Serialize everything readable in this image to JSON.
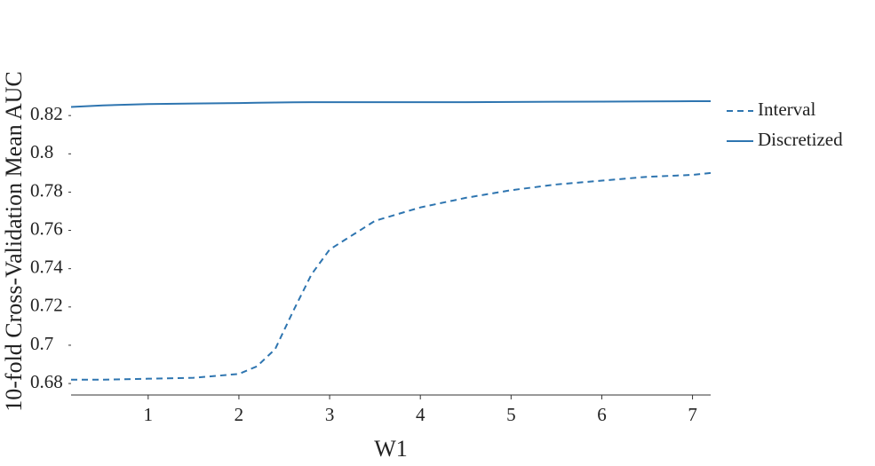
{
  "chart_data": {
    "type": "line",
    "x_label": "W1",
    "y_label": "10-fold Cross-Validation Mean AUC",
    "x": [
      0.15,
      0.5,
      1,
      1.5,
      2,
      2.2,
      2.4,
      2.6,
      2.8,
      3,
      3.5,
      4,
      4.5,
      5,
      5.5,
      6,
      6.5,
      7,
      7.2
    ],
    "series": [
      {
        "name": "Interval",
        "color": "#2e75b0",
        "dash": true,
        "values": [
          0.682,
          0.682,
          0.6825,
          0.683,
          0.685,
          0.689,
          0.698,
          0.718,
          0.737,
          0.75,
          0.765,
          0.772,
          0.777,
          0.781,
          0.784,
          0.786,
          0.788,
          0.789,
          0.79
        ]
      },
      {
        "name": "Discretized",
        "color": "#2e75b0",
        "dash": false,
        "values": [
          0.8245,
          0.8253,
          0.826,
          0.8263,
          0.8265,
          0.8267,
          0.8268,
          0.8269,
          0.827,
          0.827,
          0.827,
          0.827,
          0.827,
          0.8271,
          0.8272,
          0.8273,
          0.8274,
          0.8275,
          0.8275
        ]
      }
    ],
    "xlim": [
      0.15,
      7.2
    ],
    "xticks": [
      1,
      2,
      3,
      4,
      5,
      6,
      7
    ],
    "ylim": [
      0.674,
      0.834
    ],
    "yticks": [
      0.68,
      0.7,
      0.72,
      0.74,
      0.76,
      0.78,
      0.8,
      0.82
    ],
    "grid": false,
    "legend": "right"
  }
}
